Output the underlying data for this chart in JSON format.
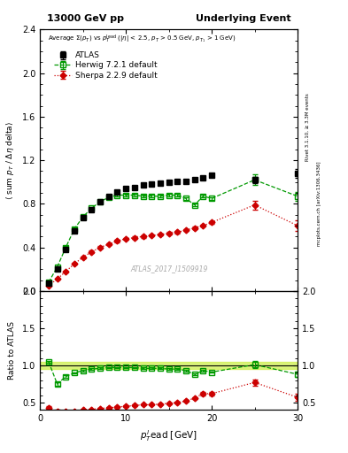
{
  "title_left": "13000 GeV pp",
  "title_right": "Underlying Event",
  "ylabel_main": "<sum p_T / Delta_eta delta>",
  "ylabel_ratio": "Ratio to ATLAS",
  "xlabel": "p$_T^l$ead [GeV]",
  "annotation": "ATLAS_2017_I1509919",
  "right_label": "Rivet 3.1.10, ≥ 3.3M events    mcplots.cern.ch [arXiv:1306.3436]",
  "atlas_label": "ATLAS",
  "herwig_label": "Herwig 7.2.1 default",
  "sherpa_label": "Sherpa 2.2.9 default",
  "legend_line": "Average Σ(p_T) vs p_T^{lead} (|η| < 2.5, p_T > 0.5 GeV, p_{T1} > 1 GeV)",
  "ylim_main": [
    0.0,
    2.4
  ],
  "ylim_ratio": [
    0.4,
    2.0
  ],
  "xlim": [
    0,
    30
  ],
  "atlas_x": [
    1,
    2,
    3,
    4,
    5,
    6,
    7,
    8,
    9,
    10,
    11,
    12,
    13,
    14,
    15,
    16,
    17,
    18,
    19,
    20,
    25,
    30
  ],
  "atlas_y": [
    0.07,
    0.2,
    0.38,
    0.55,
    0.67,
    0.75,
    0.82,
    0.87,
    0.91,
    0.94,
    0.95,
    0.97,
    0.98,
    0.99,
    1.0,
    1.01,
    1.01,
    1.02,
    1.04,
    1.06,
    1.02,
    1.08
  ],
  "atlas_yerr": [
    0.005,
    0.008,
    0.01,
    0.012,
    0.012,
    0.012,
    0.012,
    0.012,
    0.012,
    0.012,
    0.012,
    0.012,
    0.012,
    0.012,
    0.012,
    0.012,
    0.012,
    0.012,
    0.012,
    0.012,
    0.03,
    0.04
  ],
  "herwig_x": [
    1,
    2,
    3,
    4,
    5,
    6,
    7,
    8,
    9,
    10,
    11,
    12,
    13,
    14,
    15,
    16,
    17,
    18,
    19,
    20,
    25,
    30
  ],
  "herwig_y": [
    0.08,
    0.22,
    0.4,
    0.57,
    0.68,
    0.76,
    0.82,
    0.86,
    0.88,
    0.88,
    0.88,
    0.87,
    0.87,
    0.87,
    0.88,
    0.88,
    0.85,
    0.79,
    0.87,
    0.85,
    1.02,
    0.87
  ],
  "herwig_yerr": [
    0.005,
    0.008,
    0.01,
    0.012,
    0.012,
    0.012,
    0.012,
    0.012,
    0.012,
    0.012,
    0.012,
    0.012,
    0.012,
    0.012,
    0.012,
    0.012,
    0.012,
    0.012,
    0.012,
    0.012,
    0.05,
    0.04
  ],
  "sherpa_x": [
    1,
    2,
    3,
    4,
    5,
    6,
    7,
    8,
    9,
    10,
    11,
    12,
    13,
    14,
    15,
    16,
    17,
    18,
    19,
    20,
    25,
    30
  ],
  "sherpa_y": [
    0.05,
    0.11,
    0.18,
    0.25,
    0.31,
    0.36,
    0.4,
    0.43,
    0.46,
    0.48,
    0.49,
    0.5,
    0.51,
    0.52,
    0.53,
    0.54,
    0.56,
    0.58,
    0.6,
    0.63,
    0.79,
    0.6
  ],
  "sherpa_yerr": [
    0.004,
    0.006,
    0.008,
    0.01,
    0.01,
    0.01,
    0.01,
    0.01,
    0.01,
    0.01,
    0.01,
    0.01,
    0.01,
    0.01,
    0.01,
    0.01,
    0.01,
    0.01,
    0.01,
    0.01,
    0.04,
    0.05
  ],
  "herwig_ratio_y": [
    1.05,
    0.75,
    0.85,
    0.9,
    0.93,
    0.95,
    0.96,
    0.97,
    0.97,
    0.97,
    0.97,
    0.96,
    0.96,
    0.96,
    0.95,
    0.95,
    0.93,
    0.88,
    0.93,
    0.91,
    1.01,
    0.88
  ],
  "herwig_ratio_yerr": [
    0.01,
    0.02,
    0.015,
    0.01,
    0.01,
    0.01,
    0.01,
    0.01,
    0.01,
    0.01,
    0.01,
    0.01,
    0.01,
    0.01,
    0.01,
    0.01,
    0.01,
    0.01,
    0.01,
    0.01,
    0.05,
    0.04
  ],
  "sherpa_ratio_y": [
    0.43,
    0.38,
    0.38,
    0.38,
    0.4,
    0.41,
    0.42,
    0.43,
    0.44,
    0.45,
    0.46,
    0.47,
    0.47,
    0.48,
    0.49,
    0.5,
    0.52,
    0.56,
    0.62,
    0.62,
    0.77,
    0.57
  ],
  "sherpa_ratio_yerr": [
    0.02,
    0.02,
    0.01,
    0.01,
    0.01,
    0.01,
    0.01,
    0.01,
    0.01,
    0.01,
    0.01,
    0.01,
    0.01,
    0.01,
    0.01,
    0.01,
    0.01,
    0.01,
    0.02,
    0.02,
    0.04,
    0.05
  ],
  "atlas_color": "black",
  "herwig_color": "#009900",
  "sherpa_color": "#cc0000",
  "band_color": "#ccee44",
  "background_color": "white"
}
